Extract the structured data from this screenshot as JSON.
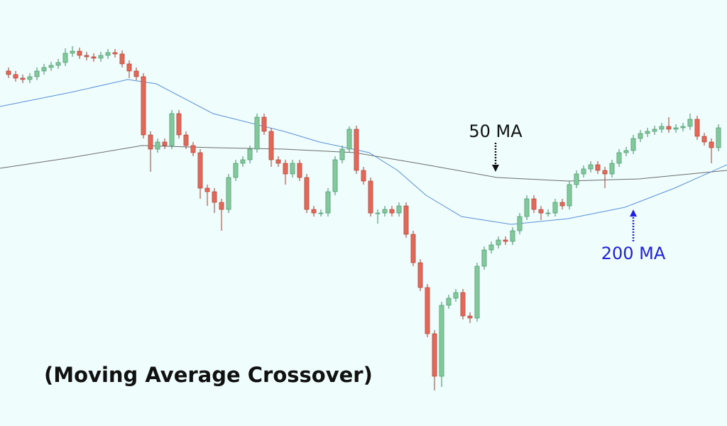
{
  "chart_data": {
    "type": "candlestick",
    "title": "(Moving Average Crossover)",
    "xlim": [
      -1.2,
      101.2
    ],
    "ylim": [
      0,
      600
    ],
    "up_color": "#82c89c",
    "down_color": "#e0695a",
    "candles": [
      [
        500,
        505,
        490,
        495
      ],
      [
        495,
        500,
        485,
        490
      ],
      [
        490,
        495,
        483,
        488
      ],
      [
        488,
        497,
        483,
        492
      ],
      [
        492,
        505,
        487,
        500
      ],
      [
        500,
        510,
        495,
        505
      ],
      [
        505,
        513,
        500,
        508
      ],
      [
        508,
        517,
        503,
        512
      ],
      [
        512,
        532,
        507,
        525
      ],
      [
        525,
        535,
        520,
        528
      ],
      [
        528,
        533,
        517,
        522
      ],
      [
        522,
        527,
        515,
        520
      ],
      [
        520,
        525,
        513,
        518
      ],
      [
        518,
        527,
        513,
        522
      ],
      [
        522,
        531,
        517,
        526
      ],
      [
        526,
        531,
        519,
        524
      ],
      [
        524,
        529,
        505,
        510
      ],
      [
        510,
        515,
        490,
        500
      ],
      [
        500,
        505,
        487,
        492
      ],
      [
        492,
        497,
        405,
        410
      ],
      [
        410,
        415,
        358,
        390
      ],
      [
        390,
        405,
        385,
        400
      ],
      [
        400,
        405,
        390,
        395
      ],
      [
        395,
        445,
        390,
        440
      ],
      [
        440,
        445,
        405,
        410
      ],
      [
        410,
        415,
        390,
        395
      ],
      [
        395,
        400,
        380,
        385
      ],
      [
        385,
        390,
        320,
        335
      ],
      [
        335,
        340,
        310,
        330
      ],
      [
        330,
        335,
        300,
        315
      ],
      [
        315,
        320,
        275,
        305
      ],
      [
        305,
        355,
        300,
        350
      ],
      [
        350,
        375,
        345,
        370
      ],
      [
        370,
        380,
        365,
        375
      ],
      [
        375,
        395,
        370,
        390
      ],
      [
        390,
        440,
        385,
        435
      ],
      [
        435,
        440,
        410,
        415
      ],
      [
        415,
        420,
        365,
        375
      ],
      [
        375,
        380,
        365,
        370
      ],
      [
        370,
        375,
        340,
        355
      ],
      [
        355,
        375,
        350,
        370
      ],
      [
        370,
        375,
        345,
        350
      ],
      [
        350,
        355,
        300,
        305
      ],
      [
        305,
        310,
        295,
        300
      ],
      [
        300,
        305,
        295,
        300
      ],
      [
        300,
        335,
        295,
        330
      ],
      [
        330,
        380,
        325,
        375
      ],
      [
        375,
        395,
        370,
        390
      ],
      [
        390,
        422,
        385,
        418
      ],
      [
        418,
        423,
        355,
        360
      ],
      [
        360,
        365,
        340,
        345
      ],
      [
        345,
        350,
        295,
        300
      ],
      [
        300,
        305,
        285,
        300
      ],
      [
        300,
        310,
        295,
        305
      ],
      [
        305,
        310,
        295,
        300
      ],
      [
        300,
        315,
        295,
        310
      ],
      [
        310,
        315,
        265,
        270
      ],
      [
        270,
        275,
        225,
        230
      ],
      [
        230,
        235,
        190,
        195
      ],
      [
        195,
        200,
        125,
        130
      ],
      [
        130,
        135,
        50,
        70
      ],
      [
        70,
        175,
        55,
        170
      ],
      [
        170,
        185,
        165,
        180
      ],
      [
        180,
        193,
        175,
        188
      ],
      [
        188,
        193,
        150,
        155
      ],
      [
        155,
        160,
        145,
        152
      ],
      [
        152,
        230,
        147,
        225
      ],
      [
        225,
        253,
        220,
        248
      ],
      [
        248,
        260,
        243,
        255
      ],
      [
        255,
        267,
        250,
        262
      ],
      [
        262,
        267,
        255,
        260
      ],
      [
        260,
        280,
        255,
        275
      ],
      [
        275,
        300,
        270,
        295
      ],
      [
        295,
        325,
        290,
        320
      ],
      [
        320,
        325,
        300,
        305
      ],
      [
        305,
        310,
        290,
        300
      ],
      [
        300,
        305,
        295,
        300
      ],
      [
        300,
        320,
        295,
        315
      ],
      [
        315,
        320,
        305,
        310
      ],
      [
        310,
        345,
        305,
        340
      ],
      [
        340,
        360,
        335,
        355
      ],
      [
        355,
        367,
        350,
        362
      ],
      [
        362,
        373,
        357,
        368
      ],
      [
        368,
        373,
        355,
        360
      ],
      [
        360,
        365,
        335,
        355
      ],
      [
        355,
        375,
        350,
        370
      ],
      [
        370,
        390,
        365,
        385
      ],
      [
        385,
        393,
        380,
        388
      ],
      [
        388,
        410,
        383,
        405
      ],
      [
        405,
        417,
        400,
        412
      ],
      [
        412,
        420,
        407,
        415
      ],
      [
        415,
        423,
        410,
        418
      ],
      [
        418,
        427,
        413,
        422
      ],
      [
        422,
        435,
        413,
        418
      ],
      [
        418,
        425,
        413,
        420
      ],
      [
        420,
        427,
        415,
        422
      ],
      [
        422,
        440,
        417,
        432
      ],
      [
        432,
        437,
        403,
        408
      ],
      [
        408,
        413,
        395,
        400
      ],
      [
        400,
        405,
        370,
        392
      ],
      [
        392,
        425,
        387,
        420
      ]
    ],
    "series": [
      {
        "name": "50 MA",
        "color": "#6b6b6b",
        "x": [
          -1.2,
          8.8,
          18.8,
          28.8,
          38.8,
          48.8,
          58.8,
          68.8,
          78.8,
          88.8,
          101.2
        ],
        "values": [
          363,
          378,
          395,
          392,
          390,
          385,
          368,
          350,
          345,
          348,
          360
        ]
      },
      {
        "name": "200 MA",
        "color": "#5b8fd9",
        "x": [
          -1.2,
          8.8,
          16.8,
          20.8,
          28.8,
          38.8,
          43.8,
          50.8,
          54.8,
          58.8,
          63.8,
          70.8,
          78.8,
          86.8,
          93.8,
          101.2
        ],
        "values": [
          450,
          470,
          488,
          482,
          440,
          415,
          400,
          385,
          360,
          325,
          295,
          284,
          292,
          308,
          335,
          368
        ]
      }
    ]
  }
}
